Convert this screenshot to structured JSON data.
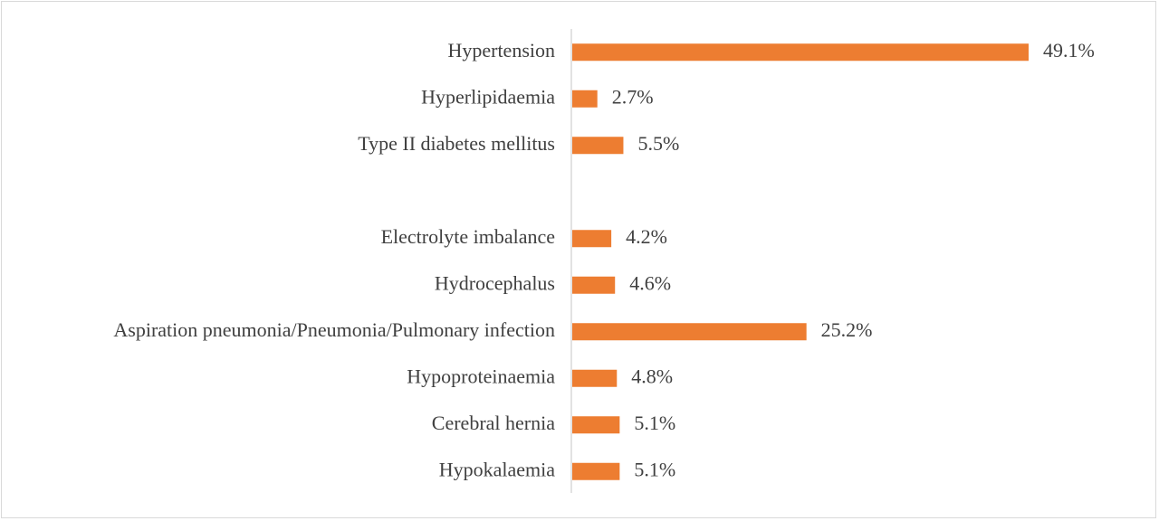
{
  "chart_data": {
    "type": "bar",
    "orientation": "horizontal",
    "categories": [
      "Hypertension",
      "Hyperlipidaemia",
      "Type II diabetes mellitus",
      "",
      "Electrolyte imbalance",
      "Hydrocephalus",
      "Aspiration pneumonia/Pneumonia/Pulmonary infection",
      "Hypoproteinaemia",
      "Cerebral hernia",
      "Hypokalaemia"
    ],
    "values": [
      49.1,
      2.7,
      5.5,
      null,
      4.2,
      4.6,
      25.2,
      4.8,
      5.1,
      5.1
    ],
    "value_labels": [
      "49.1%",
      "2.7%",
      "5.5%",
      "",
      "4.2%",
      "4.6%",
      "25.2%",
      "4.8%",
      "5.1%",
      "5.1%"
    ],
    "title": "",
    "xlabel": "",
    "ylabel": "",
    "xlim": [
      0,
      50
    ],
    "grid": false,
    "legend": "none",
    "bar_color": "#ed7d31",
    "axis_color": "#d9d9d9",
    "text_color": "#404040"
  }
}
